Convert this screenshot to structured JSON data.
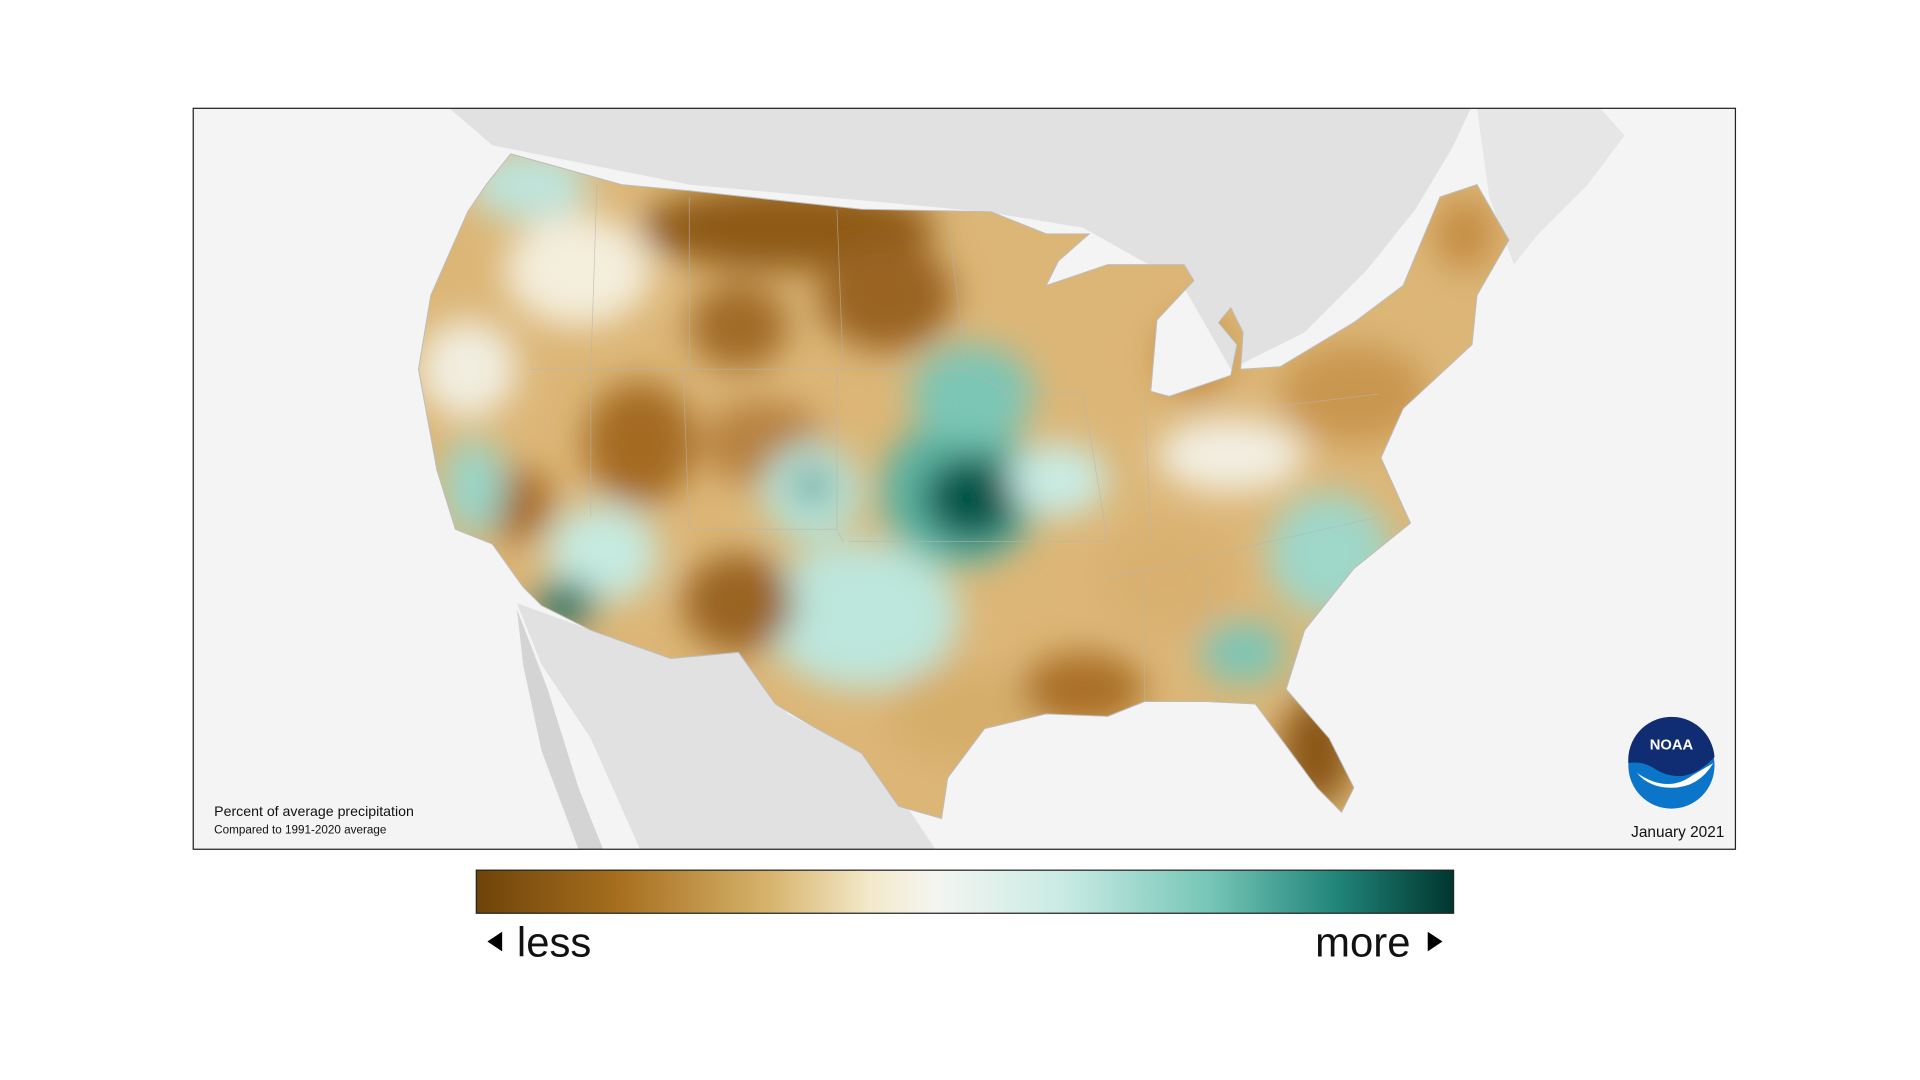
{
  "map": {
    "caption_title": "Percent of average precipitation",
    "caption_subtitle": "Compared to 1991-2020 average",
    "date": "January 2021",
    "logo_text": "NOAA"
  },
  "legend": {
    "low_label": "less",
    "high_label": "more"
  }
}
